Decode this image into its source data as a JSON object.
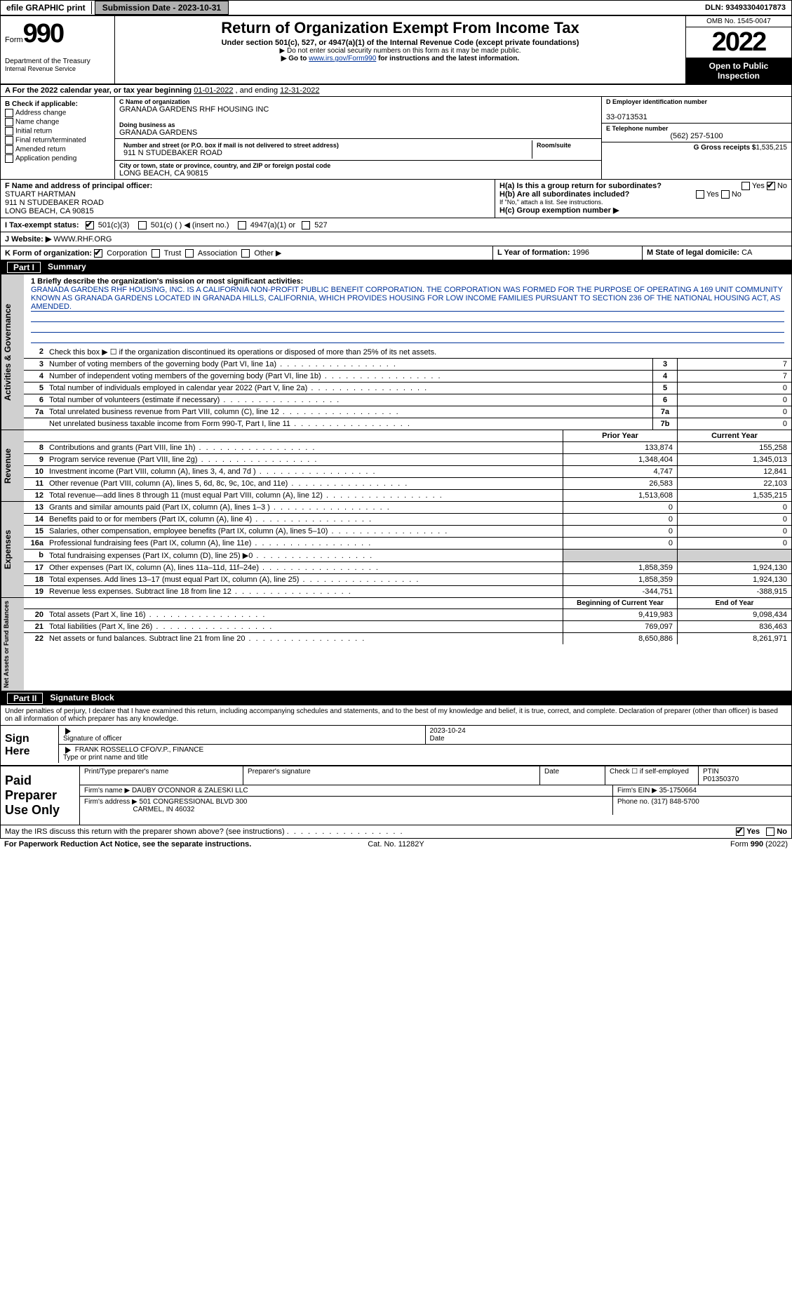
{
  "topbar": {
    "efile": "efile GRAPHIC print",
    "submission_label": "Submission Date - 2023-10-31",
    "dln_label": "DLN: 93493304017873"
  },
  "header": {
    "form_label": "Form",
    "form_number": "990",
    "title": "Return of Organization Exempt From Income Tax",
    "subtitle": "Under section 501(c), 527, or 4947(a)(1) of the Internal Revenue Code (except private foundations)",
    "note1": "▶ Do not enter social security numbers on this form as it may be made public.",
    "note2_pre": "▶ Go to ",
    "note2_link": "www.irs.gov/Form990",
    "note2_post": " for instructions and the latest information.",
    "dept": "Department of the Treasury",
    "irs": "Internal Revenue Service",
    "omb": "OMB No. 1545-0047",
    "year": "2022",
    "opentopublic1": "Open to Public",
    "opentopublic2": "Inspection"
  },
  "rowA": {
    "text_pre": "A For the 2022 calendar year, or tax year beginning ",
    "begin": "01-01-2022",
    "mid": " , and ending ",
    "end": "12-31-2022"
  },
  "colB": {
    "header": "B Check if applicable:",
    "items": [
      "Address change",
      "Name change",
      "Initial return",
      "Final return/terminated",
      "Amended return",
      "Application pending"
    ]
  },
  "colC": {
    "name_label": "C Name of organization",
    "name": "GRANADA GARDENS RHF HOUSING INC",
    "dba_label": "Doing business as",
    "dba": "GRANADA GARDENS",
    "addr_label": "Number and street (or P.O. box if mail is not delivered to street address)",
    "room_label": "Room/suite",
    "addr": "911 N STUDEBAKER ROAD",
    "city_label": "City or town, state or province, country, and ZIP or foreign postal code",
    "city": "LONG BEACH, CA  90815"
  },
  "colD": {
    "d_label": "D Employer identification number",
    "d_val": "33-0713531",
    "e_label": "E Telephone number",
    "e_val": "(562) 257-5100",
    "g_label": "G Gross receipts $",
    "g_val": "1,535,215"
  },
  "rowF": {
    "f_label": "F Name and address of principal officer:",
    "f_name": "STUART HARTMAN",
    "f_addr1": "911 N STUDEBAKER ROAD",
    "f_addr2": "LONG BEACH, CA  90815",
    "ha_label": "H(a) Is this a group return for subordinates?",
    "yes": "Yes",
    "no": "No",
    "hb_label": "H(b) Are all subordinates included?",
    "hb_note": "If \"No,\" attach a list. See instructions.",
    "hc_label": "H(c) Group exemption number ▶"
  },
  "rowI": {
    "label": "I Tax-exempt status:",
    "opt1": "501(c)(3)",
    "opt2": "501(c) (  ) ◀ (insert no.)",
    "opt3": "4947(a)(1) or",
    "opt4": "527"
  },
  "rowJ": {
    "label": "J Website: ▶",
    "val": "WWW.RHF.ORG"
  },
  "rowK": {
    "label": "K Form of organization:",
    "opts": [
      "Corporation",
      "Trust",
      "Association",
      "Other ▶"
    ],
    "l_label": "L Year of formation:",
    "l_val": "1996",
    "m_label": "M State of legal domicile:",
    "m_val": "CA"
  },
  "part1": {
    "hdr_num": "Part I",
    "hdr_title": "Summary",
    "q1_label": "1 Briefly describe the organization's mission or most significant activities:",
    "mission": "GRANADA GARDENS RHF HOUSING, INC. IS A CALIFORNIA NON-PROFIT PUBLIC BENEFIT CORPORATION. THE CORPORATION WAS FORMED FOR THE PURPOSE OF OPERATING A 169 UNIT COMMUNITY KNOWN AS GRANADA GARDENS LOCATED IN GRANADA HILLS, CALIFORNIA, WHICH PROVIDES HOUSING FOR LOW INCOME FAMILIES PURSUANT TO SECTION 236 OF THE NATIONAL HOUSING ACT, AS AMENDED.",
    "q2": "Check this box ▶ ☐ if the organization discontinued its operations or disposed of more than 25% of its net assets.",
    "gov_lines": [
      {
        "n": "3",
        "d": "Number of voting members of the governing body (Part VI, line 1a)",
        "cn": "3",
        "v": "7"
      },
      {
        "n": "4",
        "d": "Number of independent voting members of the governing body (Part VI, line 1b)",
        "cn": "4",
        "v": "7"
      },
      {
        "n": "5",
        "d": "Total number of individuals employed in calendar year 2022 (Part V, line 2a)",
        "cn": "5",
        "v": "0"
      },
      {
        "n": "6",
        "d": "Total number of volunteers (estimate if necessary)",
        "cn": "6",
        "v": "0"
      },
      {
        "n": "7a",
        "d": "Total unrelated business revenue from Part VIII, column (C), line 12",
        "cn": "7a",
        "v": "0"
      },
      {
        "n": "",
        "d": "Net unrelated business taxable income from Form 990-T, Part I, line 11",
        "cn": "7b",
        "v": "0"
      }
    ],
    "col_prior": "Prior Year",
    "col_current": "Current Year",
    "rev_lines": [
      {
        "n": "8",
        "d": "Contributions and grants (Part VIII, line 1h)",
        "p": "133,874",
        "c": "155,258"
      },
      {
        "n": "9",
        "d": "Program service revenue (Part VIII, line 2g)",
        "p": "1,348,404",
        "c": "1,345,013"
      },
      {
        "n": "10",
        "d": "Investment income (Part VIII, column (A), lines 3, 4, and 7d )",
        "p": "4,747",
        "c": "12,841"
      },
      {
        "n": "11",
        "d": "Other revenue (Part VIII, column (A), lines 5, 6d, 8c, 9c, 10c, and 11e)",
        "p": "26,583",
        "c": "22,103"
      },
      {
        "n": "12",
        "d": "Total revenue—add lines 8 through 11 (must equal Part VIII, column (A), line 12)",
        "p": "1,513,608",
        "c": "1,535,215"
      }
    ],
    "exp_lines": [
      {
        "n": "13",
        "d": "Grants and similar amounts paid (Part IX, column (A), lines 1–3 )",
        "p": "0",
        "c": "0"
      },
      {
        "n": "14",
        "d": "Benefits paid to or for members (Part IX, column (A), line 4)",
        "p": "0",
        "c": "0"
      },
      {
        "n": "15",
        "d": "Salaries, other compensation, employee benefits (Part IX, column (A), lines 5–10)",
        "p": "0",
        "c": "0"
      },
      {
        "n": "16a",
        "d": "Professional fundraising fees (Part IX, column (A), line 11e)",
        "p": "0",
        "c": "0"
      },
      {
        "n": "b",
        "d": "Total fundraising expenses (Part IX, column (D), line 25) ▶0",
        "p": "",
        "c": ""
      },
      {
        "n": "17",
        "d": "Other expenses (Part IX, column (A), lines 11a–11d, 11f–24e)",
        "p": "1,858,359",
        "c": "1,924,130"
      },
      {
        "n": "18",
        "d": "Total expenses. Add lines 13–17 (must equal Part IX, column (A), line 25)",
        "p": "1,858,359",
        "c": "1,924,130"
      },
      {
        "n": "19",
        "d": "Revenue less expenses. Subtract line 18 from line 12",
        "p": "-344,751",
        "c": "-388,915"
      }
    ],
    "col_beg": "Beginning of Current Year",
    "col_end": "End of Year",
    "na_lines": [
      {
        "n": "20",
        "d": "Total assets (Part X, line 16)",
        "p": "9,419,983",
        "c": "9,098,434"
      },
      {
        "n": "21",
        "d": "Total liabilities (Part X, line 26)",
        "p": "769,097",
        "c": "836,463"
      },
      {
        "n": "22",
        "d": "Net assets or fund balances. Subtract line 21 from line 20",
        "p": "8,650,886",
        "c": "8,261,971"
      }
    ],
    "vlabels": {
      "gov": "Activities & Governance",
      "rev": "Revenue",
      "exp": "Expenses",
      "na": "Net Assets or Fund Balances"
    }
  },
  "part2": {
    "hdr_num": "Part II",
    "hdr_title": "Signature Block",
    "penalty": "Under penalties of perjury, I declare that I have examined this return, including accompanying schedules and statements, and to the best of my knowledge and belief, it is true, correct, and complete. Declaration of preparer (other than officer) is based on all information of which preparer has any knowledge.",
    "sign_here": "Sign Here",
    "sig_officer": "Signature of officer",
    "sig_date_label": "Date",
    "sig_date": "2023-10-24",
    "officer_name": "FRANK ROSSELLO  CFO/V.P., FINANCE",
    "officer_type": "Type or print name and title",
    "paid_prep": "Paid Preparer Use Only",
    "prep_name_label": "Print/Type preparer's name",
    "prep_sig_label": "Preparer's signature",
    "prep_date_label": "Date",
    "prep_check_label": "Check ☐ if self-employed",
    "ptin_label": "PTIN",
    "ptin": "P01350370",
    "firm_name_label": "Firm's name ▶",
    "firm_name": "DAUBY O'CONNOR & ZALESKI LLC",
    "firm_ein_label": "Firm's EIN ▶",
    "firm_ein": "35-1750664",
    "firm_addr_label": "Firm's address ▶",
    "firm_addr1": "501 CONGRESSIONAL BLVD 300",
    "firm_addr2": "CARMEL, IN  46032",
    "firm_phone_label": "Phone no.",
    "firm_phone": "(317) 848-5700",
    "discuss": "May the IRS discuss this return with the preparer shown above? (see instructions)",
    "yes": "Yes",
    "no": "No"
  },
  "footer": {
    "left": "For Paperwork Reduction Act Notice, see the separate instructions.",
    "mid": "Cat. No. 11282Y",
    "right": "Form 990 (2022)"
  },
  "colors": {
    "link": "#003399",
    "gray": "#d0d0d0",
    "btn": "#b0b0b0"
  }
}
